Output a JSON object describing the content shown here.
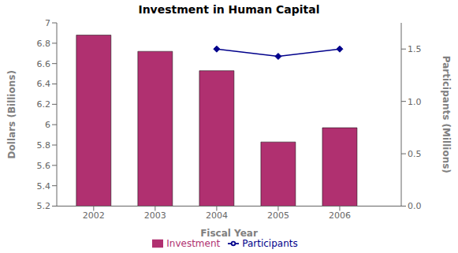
{
  "chart_data": {
    "type": "bar",
    "title": "Investment in Human Capital",
    "x_label": "Fiscal Year",
    "y_label": "Dollars (Billions)",
    "y2_label": "Participants (Millions)",
    "x": [
      2002,
      2003,
      2004,
      2005,
      2006
    ],
    "xlim": [
      2001.4,
      2007.0
    ],
    "xticks": [
      2002,
      2003,
      2004,
      2005,
      2006
    ],
    "ylim": [
      5.2,
      7.0
    ],
    "yticks": [
      5.2,
      5.4,
      5.6,
      5.8,
      6,
      6.2,
      6.4,
      6.6,
      6.8,
      7
    ],
    "y2lim": [
      0.0,
      1.75
    ],
    "y2ticks": [
      {
        "value": 0,
        "label": "0.0"
      },
      0.5,
      {
        "value": 1,
        "label": "1.0"
      },
      1.5
    ],
    "grid": false,
    "legend": "bottom",
    "series": [
      {
        "name": "Investment",
        "type": "bar",
        "color": "#b03070",
        "values": [
          6.88,
          6.72,
          6.53,
          5.83,
          5.97
        ]
      },
      {
        "name": "Participants",
        "type": "line",
        "axis": "y2",
        "color": "#00008b",
        "marker": "diamond",
        "values": [
          null,
          null,
          1.5,
          1.43,
          1.5
        ]
      }
    ]
  }
}
